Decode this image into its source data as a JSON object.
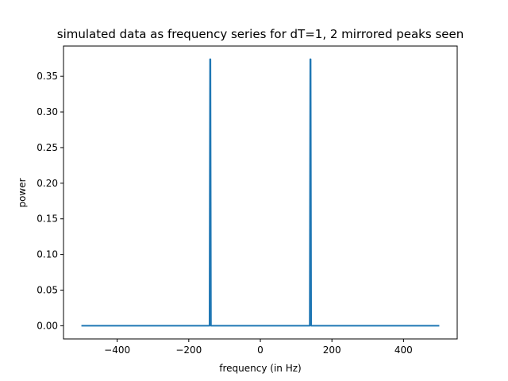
{
  "chart_data": {
    "type": "line",
    "title": "simulated data as frequency series for dT=1, 2 mirrored peaks seen",
    "xlabel": "frequency (in Hz)",
    "ylabel": "power",
    "xlim": [
      -550,
      550
    ],
    "ylim": [
      -0.0185,
      0.3925
    ],
    "x_ticks": [
      -400,
      -200,
      0,
      200,
      400
    ],
    "x_tick_labels": [
      "−400",
      "−200",
      "0",
      "200",
      "400"
    ],
    "y_ticks": [
      0.0,
      0.05,
      0.1,
      0.15,
      0.2,
      0.25,
      0.3,
      0.35
    ],
    "y_tick_labels": [
      "0.00",
      "0.05",
      "0.10",
      "0.15",
      "0.20",
      "0.25",
      "0.30",
      "0.35"
    ],
    "grid": false,
    "legend": "none",
    "series": [
      {
        "color": "#1f77b4",
        "x": [
          -500,
          -142,
          -140.5,
          -139.5,
          -138,
          138,
          139.5,
          140.5,
          142,
          500
        ],
        "values": [
          0.0,
          0.0,
          0.374,
          0.374,
          0.0,
          0.0,
          0.374,
          0.374,
          0.0,
          0.0
        ]
      }
    ]
  }
}
